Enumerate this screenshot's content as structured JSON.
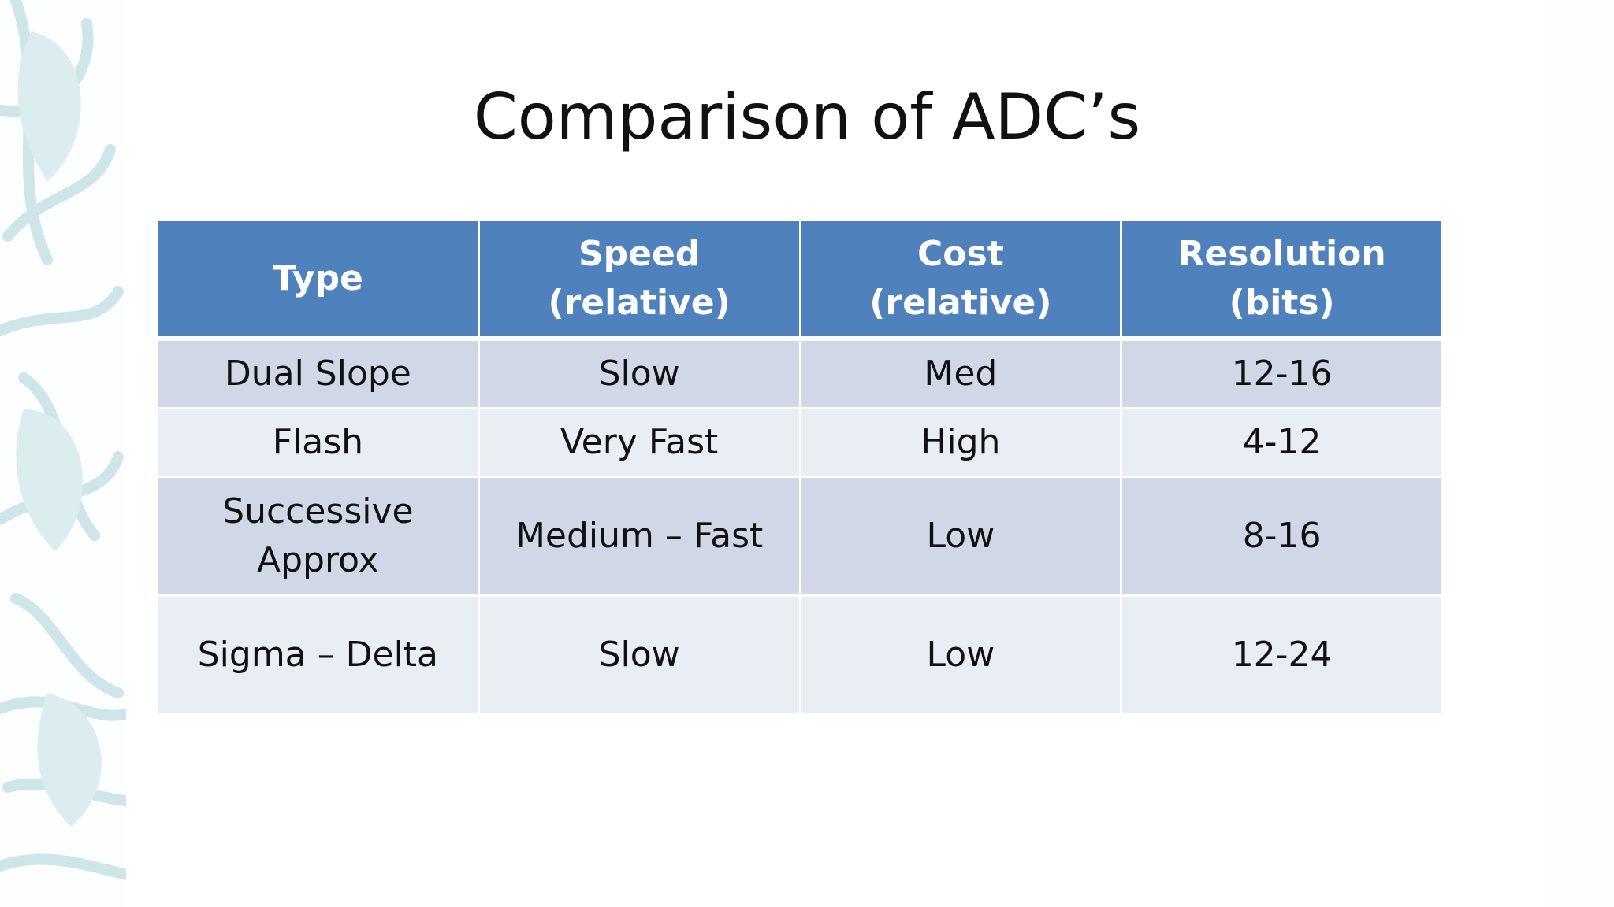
{
  "slide": {
    "title": "Comparison of ADC’s"
  },
  "table": {
    "headers": [
      "Type",
      "Speed\n(relative)",
      "Cost\n(relative)",
      "Resolution\n(bits)"
    ],
    "rows": [
      [
        "Dual Slope",
        "Slow",
        "Med",
        "12-16"
      ],
      [
        "Flash",
        "Very Fast",
        "High",
        "4-12"
      ],
      [
        "Successive Approx",
        "Medium – Fast",
        "Low",
        "8-16"
      ],
      [
        "Sigma – Delta",
        "Slow",
        "Low",
        "12-24"
      ]
    ]
  },
  "colors": {
    "header_bg": "#4f81bd",
    "row_dark": "#d0d8e8",
    "row_light": "#e9edf4",
    "decor": "#cfe6e9"
  },
  "decor_icon": "leaf-pattern"
}
